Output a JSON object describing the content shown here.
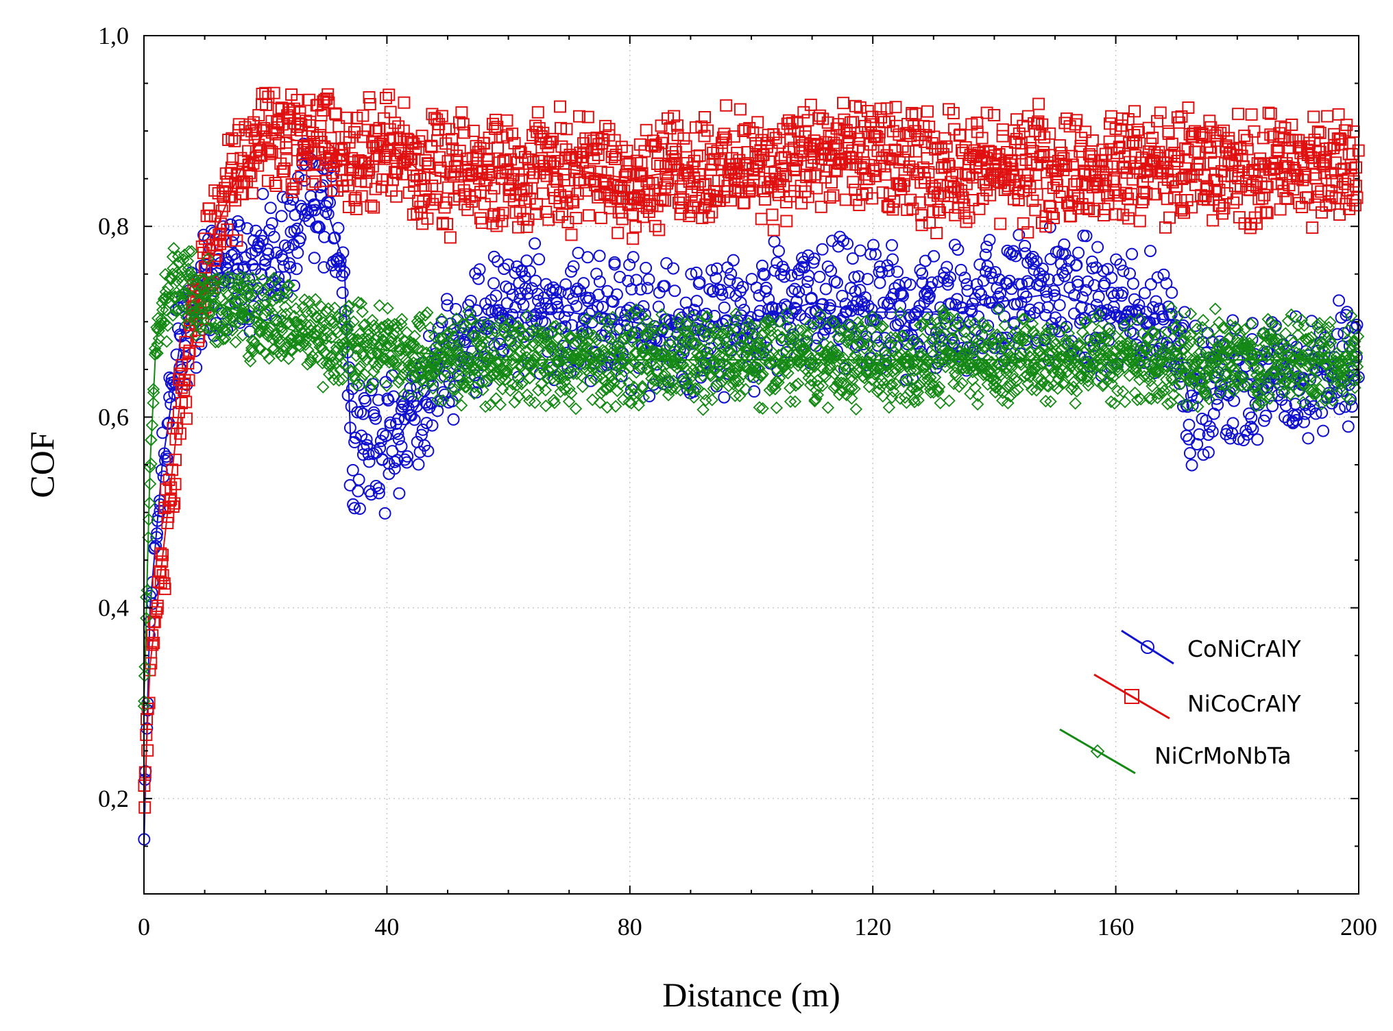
{
  "chart_data": {
    "type": "scatter",
    "title": "",
    "xlabel": "Distance (m)",
    "ylabel": "COF",
    "xlim": [
      0,
      200
    ],
    "ylim": [
      0.1,
      1.0
    ],
    "x_ticks": [
      0,
      40,
      80,
      120,
      160,
      200
    ],
    "x_tick_labels": [
      "0",
      "40",
      "80",
      "120",
      "160",
      "200"
    ],
    "y_ticks": [
      0.2,
      0.4,
      0.6,
      0.8,
      1.0
    ],
    "y_tick_labels": [
      "0,2",
      "0,4",
      "0,6",
      "0,8",
      "1,0"
    ],
    "grid": true,
    "legend_position": "lower-right",
    "series": [
      {
        "name": "CoNiCrAlY",
        "color": "#1010d0",
        "marker": "circle",
        "trend": [
          [
            0,
            0.15
          ],
          [
            1,
            0.4
          ],
          [
            3,
            0.55
          ],
          [
            6,
            0.68
          ],
          [
            10,
            0.74
          ],
          [
            15,
            0.76
          ],
          [
            20,
            0.76
          ],
          [
            24,
            0.78
          ],
          [
            27,
            0.82
          ],
          [
            30,
            0.82
          ],
          [
            33,
            0.76
          ],
          [
            34,
            0.58
          ],
          [
            38,
            0.57
          ],
          [
            42,
            0.58
          ],
          [
            46,
            0.62
          ],
          [
            50,
            0.66
          ],
          [
            55,
            0.7
          ],
          [
            60,
            0.71
          ],
          [
            70,
            0.71
          ],
          [
            80,
            0.7
          ],
          [
            90,
            0.69
          ],
          [
            100,
            0.7
          ],
          [
            110,
            0.72
          ],
          [
            120,
            0.71
          ],
          [
            130,
            0.71
          ],
          [
            140,
            0.72
          ],
          [
            150,
            0.73
          ],
          [
            160,
            0.71
          ],
          [
            170,
            0.7
          ],
          [
            172,
            0.62
          ],
          [
            180,
            0.64
          ],
          [
            190,
            0.64
          ],
          [
            200,
            0.66
          ]
        ],
        "spread": 0.08
      },
      {
        "name": "NiCoCrAlY",
        "color": "#e01010",
        "marker": "square",
        "trend": [
          [
            0,
            0.19
          ],
          [
            1,
            0.34
          ],
          [
            3,
            0.45
          ],
          [
            6,
            0.62
          ],
          [
            9,
            0.72
          ],
          [
            12,
            0.8
          ],
          [
            16,
            0.86
          ],
          [
            20,
            0.9
          ],
          [
            25,
            0.89
          ],
          [
            30,
            0.89
          ],
          [
            35,
            0.86
          ],
          [
            40,
            0.89
          ],
          [
            45,
            0.86
          ],
          [
            50,
            0.85
          ],
          [
            60,
            0.86
          ],
          [
            70,
            0.86
          ],
          [
            80,
            0.85
          ],
          [
            90,
            0.86
          ],
          [
            100,
            0.86
          ],
          [
            110,
            0.87
          ],
          [
            120,
            0.87
          ],
          [
            130,
            0.86
          ],
          [
            140,
            0.86
          ],
          [
            150,
            0.86
          ],
          [
            160,
            0.86
          ],
          [
            170,
            0.86
          ],
          [
            180,
            0.86
          ],
          [
            190,
            0.86
          ],
          [
            200,
            0.86
          ]
        ],
        "spread": 0.07
      },
      {
        "name": "NiCrMoNbTa",
        "color": "#148a14",
        "marker": "diamond",
        "trend": [
          [
            0,
            0.3
          ],
          [
            1,
            0.55
          ],
          [
            2,
            0.68
          ],
          [
            4,
            0.73
          ],
          [
            8,
            0.73
          ],
          [
            12,
            0.72
          ],
          [
            20,
            0.7
          ],
          [
            30,
            0.68
          ],
          [
            40,
            0.67
          ],
          [
            60,
            0.66
          ],
          [
            80,
            0.66
          ],
          [
            100,
            0.66
          ],
          [
            120,
            0.66
          ],
          [
            140,
            0.66
          ],
          [
            160,
            0.66
          ],
          [
            180,
            0.66
          ],
          [
            200,
            0.66
          ]
        ],
        "spread": 0.055
      }
    ]
  }
}
